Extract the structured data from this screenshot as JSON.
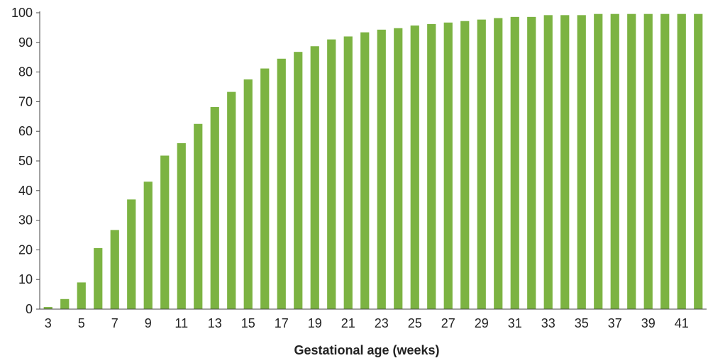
{
  "chart_data": {
    "type": "bar",
    "title": "",
    "xlabel": "Gestational age (weeks)",
    "ylabel": "",
    "ylim": [
      0,
      100
    ],
    "yticks": [
      0,
      10,
      20,
      30,
      40,
      50,
      60,
      70,
      80,
      90,
      100
    ],
    "categories": [
      3,
      4,
      5,
      6,
      7,
      8,
      9,
      10,
      11,
      12,
      13,
      14,
      15,
      16,
      17,
      18,
      19,
      20,
      21,
      22,
      23,
      24,
      25,
      26,
      27,
      28,
      29,
      30,
      31,
      32,
      33,
      34,
      35,
      36,
      37,
      38,
      39,
      40,
      41,
      42
    ],
    "xtick_labels": [
      3,
      5,
      7,
      9,
      11,
      13,
      15,
      17,
      19,
      21,
      23,
      25,
      27,
      29,
      31,
      33,
      35,
      37,
      39,
      41
    ],
    "values": [
      0.7,
      3.4,
      9,
      20.6,
      26.7,
      37,
      43,
      51.8,
      56,
      62.5,
      68.2,
      73.3,
      77.5,
      81.2,
      84.5,
      86.8,
      88.7,
      91,
      92,
      93.4,
      94.3,
      94.8,
      95.7,
      96.2,
      96.7,
      97.2,
      97.7,
      98.2,
      98.6,
      98.6,
      99.2,
      99.2,
      99.2,
      99.6,
      99.6,
      99.6,
      99.6,
      99.6,
      99.6,
      99.6
    ],
    "bar_color": "#7cb342",
    "grid": false,
    "legend": "none"
  }
}
